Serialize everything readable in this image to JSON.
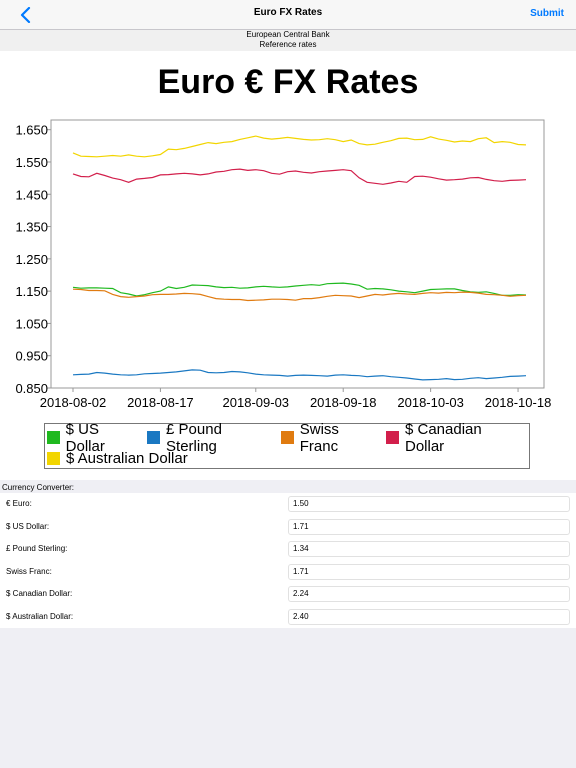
{
  "navbar": {
    "title": "Euro FX Rates",
    "submit_label": "Submit",
    "back_icon": "chevron-left-icon"
  },
  "subheader": {
    "line1": "European Central Bank",
    "line2": "Reference rates"
  },
  "chart_data": {
    "type": "line",
    "title": "Euro € FX Rates",
    "xlabel": "",
    "ylabel": "",
    "ylim": [
      0.85,
      1.7
    ],
    "y_ticks": [
      "1.650",
      "1.550",
      "1.450",
      "1.350",
      "1.250",
      "1.150",
      "1.050",
      "0.950",
      "0.850"
    ],
    "x_ticks": [
      "2018-08-02",
      "2018-08-17",
      "2018-09-03",
      "2018-09-18",
      "2018-10-03",
      "2018-10-18"
    ],
    "x_tick_indices": [
      0,
      11,
      23,
      34,
      45,
      56
    ],
    "grid": false,
    "legend_position": "bottom",
    "series": [
      {
        "name": "$ US Dollar",
        "color": "#1fb91f",
        "values": [
          1.162,
          1.159,
          1.16,
          1.16,
          1.159,
          1.158,
          1.145,
          1.141,
          1.135,
          1.139,
          1.145,
          1.15,
          1.163,
          1.158,
          1.162,
          1.169,
          1.168,
          1.167,
          1.163,
          1.161,
          1.162,
          1.159,
          1.16,
          1.163,
          1.165,
          1.163,
          1.162,
          1.163,
          1.166,
          1.168,
          1.17,
          1.168,
          1.173,
          1.174,
          1.175,
          1.172,
          1.168,
          1.156,
          1.158,
          1.157,
          1.154,
          1.15,
          1.148,
          1.145,
          1.15,
          1.155,
          1.156,
          1.157,
          1.157,
          1.152,
          1.148,
          1.146,
          1.148,
          1.143,
          1.137,
          1.137,
          1.139,
          1.138
        ]
      },
      {
        "name": "£ Pound Sterling",
        "color": "#1a78c2",
        "values": [
          0.891,
          0.892,
          0.893,
          0.898,
          0.896,
          0.893,
          0.891,
          0.89,
          0.891,
          0.894,
          0.895,
          0.896,
          0.898,
          0.9,
          0.903,
          0.906,
          0.905,
          0.898,
          0.897,
          0.898,
          0.901,
          0.9,
          0.897,
          0.893,
          0.891,
          0.89,
          0.889,
          0.887,
          0.889,
          0.89,
          0.889,
          0.888,
          0.887,
          0.89,
          0.891,
          0.889,
          0.888,
          0.885,
          0.887,
          0.888,
          0.885,
          0.883,
          0.881,
          0.878,
          0.875,
          0.876,
          0.877,
          0.879,
          0.876,
          0.877,
          0.88,
          0.882,
          0.879,
          0.881,
          0.883,
          0.886,
          0.887,
          0.888
        ]
      },
      {
        "name": "Swiss Franc",
        "color": "#e07b10",
        "values": [
          1.156,
          1.155,
          1.152,
          1.152,
          1.151,
          1.14,
          1.133,
          1.131,
          1.133,
          1.135,
          1.139,
          1.14,
          1.14,
          1.141,
          1.143,
          1.142,
          1.14,
          1.133,
          1.127,
          1.125,
          1.124,
          1.124,
          1.121,
          1.122,
          1.123,
          1.125,
          1.125,
          1.124,
          1.122,
          1.127,
          1.127,
          1.13,
          1.134,
          1.137,
          1.136,
          1.135,
          1.13,
          1.135,
          1.14,
          1.138,
          1.141,
          1.143,
          1.141,
          1.14,
          1.143,
          1.145,
          1.144,
          1.146,
          1.145,
          1.147,
          1.146,
          1.144,
          1.14,
          1.139,
          1.137,
          1.134,
          1.136,
          1.137
        ]
      },
      {
        "name": "$ Canadian Dollar",
        "color": "#d21f4b",
        "values": [
          1.513,
          1.505,
          1.504,
          1.515,
          1.508,
          1.5,
          1.495,
          1.487,
          1.497,
          1.499,
          1.502,
          1.51,
          1.511,
          1.513,
          1.515,
          1.513,
          1.51,
          1.513,
          1.519,
          1.521,
          1.526,
          1.528,
          1.524,
          1.526,
          1.523,
          1.515,
          1.512,
          1.52,
          1.522,
          1.518,
          1.516,
          1.52,
          1.522,
          1.524,
          1.526,
          1.523,
          1.501,
          1.487,
          1.484,
          1.481,
          1.485,
          1.49,
          1.487,
          1.505,
          1.506,
          1.503,
          1.498,
          1.494,
          1.495,
          1.497,
          1.501,
          1.502,
          1.496,
          1.492,
          1.49,
          1.493,
          1.494,
          1.495
        ]
      },
      {
        "name": "$ Australian Dollar",
        "color": "#f2d500",
        "values": [
          1.578,
          1.568,
          1.567,
          1.566,
          1.568,
          1.57,
          1.568,
          1.572,
          1.568,
          1.566,
          1.569,
          1.573,
          1.59,
          1.588,
          1.592,
          1.598,
          1.604,
          1.61,
          1.607,
          1.611,
          1.613,
          1.62,
          1.625,
          1.63,
          1.624,
          1.621,
          1.623,
          1.626,
          1.623,
          1.62,
          1.618,
          1.619,
          1.622,
          1.619,
          1.613,
          1.618,
          1.607,
          1.603,
          1.605,
          1.611,
          1.616,
          1.623,
          1.624,
          1.619,
          1.62,
          1.628,
          1.621,
          1.617,
          1.612,
          1.615,
          1.613,
          1.622,
          1.625,
          1.61,
          1.613,
          1.611,
          1.604,
          1.603
        ]
      }
    ]
  },
  "converter": {
    "header": "Currency Converter:",
    "rows": [
      {
        "label": "€ Euro:",
        "value": "1.50"
      },
      {
        "label": "$ US Dollar:",
        "value": "1.71"
      },
      {
        "label": "£ Pound Sterling:",
        "value": "1.34"
      },
      {
        "label": "Swiss Franc:",
        "value": "1.71"
      },
      {
        "label": "$ Canadian Dollar:",
        "value": "2.24"
      },
      {
        "label": "$ Australian Dollar:",
        "value": "2.40"
      }
    ]
  }
}
